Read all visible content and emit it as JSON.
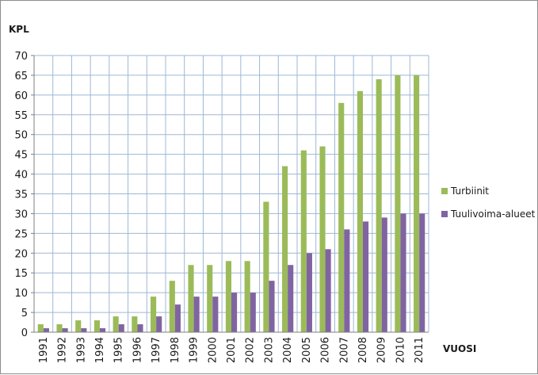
{
  "chart_data": {
    "type": "bar",
    "title": "",
    "xlabel": "VUOSI",
    "ylabel": "KPL",
    "ylim": [
      0,
      70
    ],
    "ytick_step": 5,
    "grid": true,
    "legend_position": "right",
    "categories": [
      "1991",
      "1992",
      "1993",
      "1994",
      "1995",
      "1996",
      "1997",
      "1998",
      "1999",
      "2000",
      "2001",
      "2002",
      "2003",
      "2004",
      "2005",
      "2006",
      "2007",
      "2008",
      "2009",
      "2010",
      "2011"
    ],
    "series": [
      {
        "name": "Turbiinit",
        "color": "#9bbb59",
        "values": [
          2,
          2,
          3,
          3,
          4,
          4,
          9,
          13,
          17,
          17,
          18,
          18,
          33,
          42,
          46,
          47,
          58,
          61,
          64,
          65,
          65
        ]
      },
      {
        "name": "Tuulivoima-alueet",
        "color": "#8064a2",
        "values": [
          1,
          1,
          1,
          1,
          2,
          2,
          4,
          7,
          9,
          9,
          10,
          10,
          13,
          17,
          20,
          21,
          26,
          28,
          29,
          30,
          30
        ]
      }
    ],
    "grid_color": "#9db7d6"
  }
}
